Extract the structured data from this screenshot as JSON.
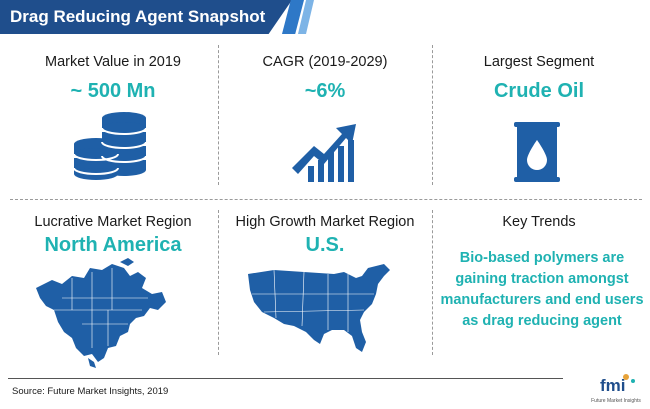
{
  "header": {
    "title": "Drag Reducing Agent Snapshot"
  },
  "cells": [
    {
      "label": "Market Value in 2019",
      "value": "~ 500 Mn",
      "icon": "coin-stack-icon"
    },
    {
      "label": "CAGR (2019-2029)",
      "value": "~6%",
      "icon": "growth-chart-icon"
    },
    {
      "label": "Largest Segment",
      "value": "Crude Oil",
      "icon": "oil-barrel-icon"
    },
    {
      "label": "Lucrative Market Region",
      "value": "North America",
      "icon": "north-america-map-icon"
    },
    {
      "label": "High Growth Market Region",
      "value": "U.S.",
      "icon": "usa-map-icon"
    },
    {
      "label": "Key Trends",
      "value": "Bio-based polymers are gaining traction amongst manufacturers and end users as drag reducing agent"
    }
  ],
  "footer": {
    "source": "Source: Future Market Insights, 2019",
    "logo_text": "fmi",
    "logo_subtext": "Future Market Insights"
  },
  "colors": {
    "header_bg": "#1f4e8c",
    "accent": "#1fb2b2",
    "icon_blue": "#1f5fa6"
  }
}
